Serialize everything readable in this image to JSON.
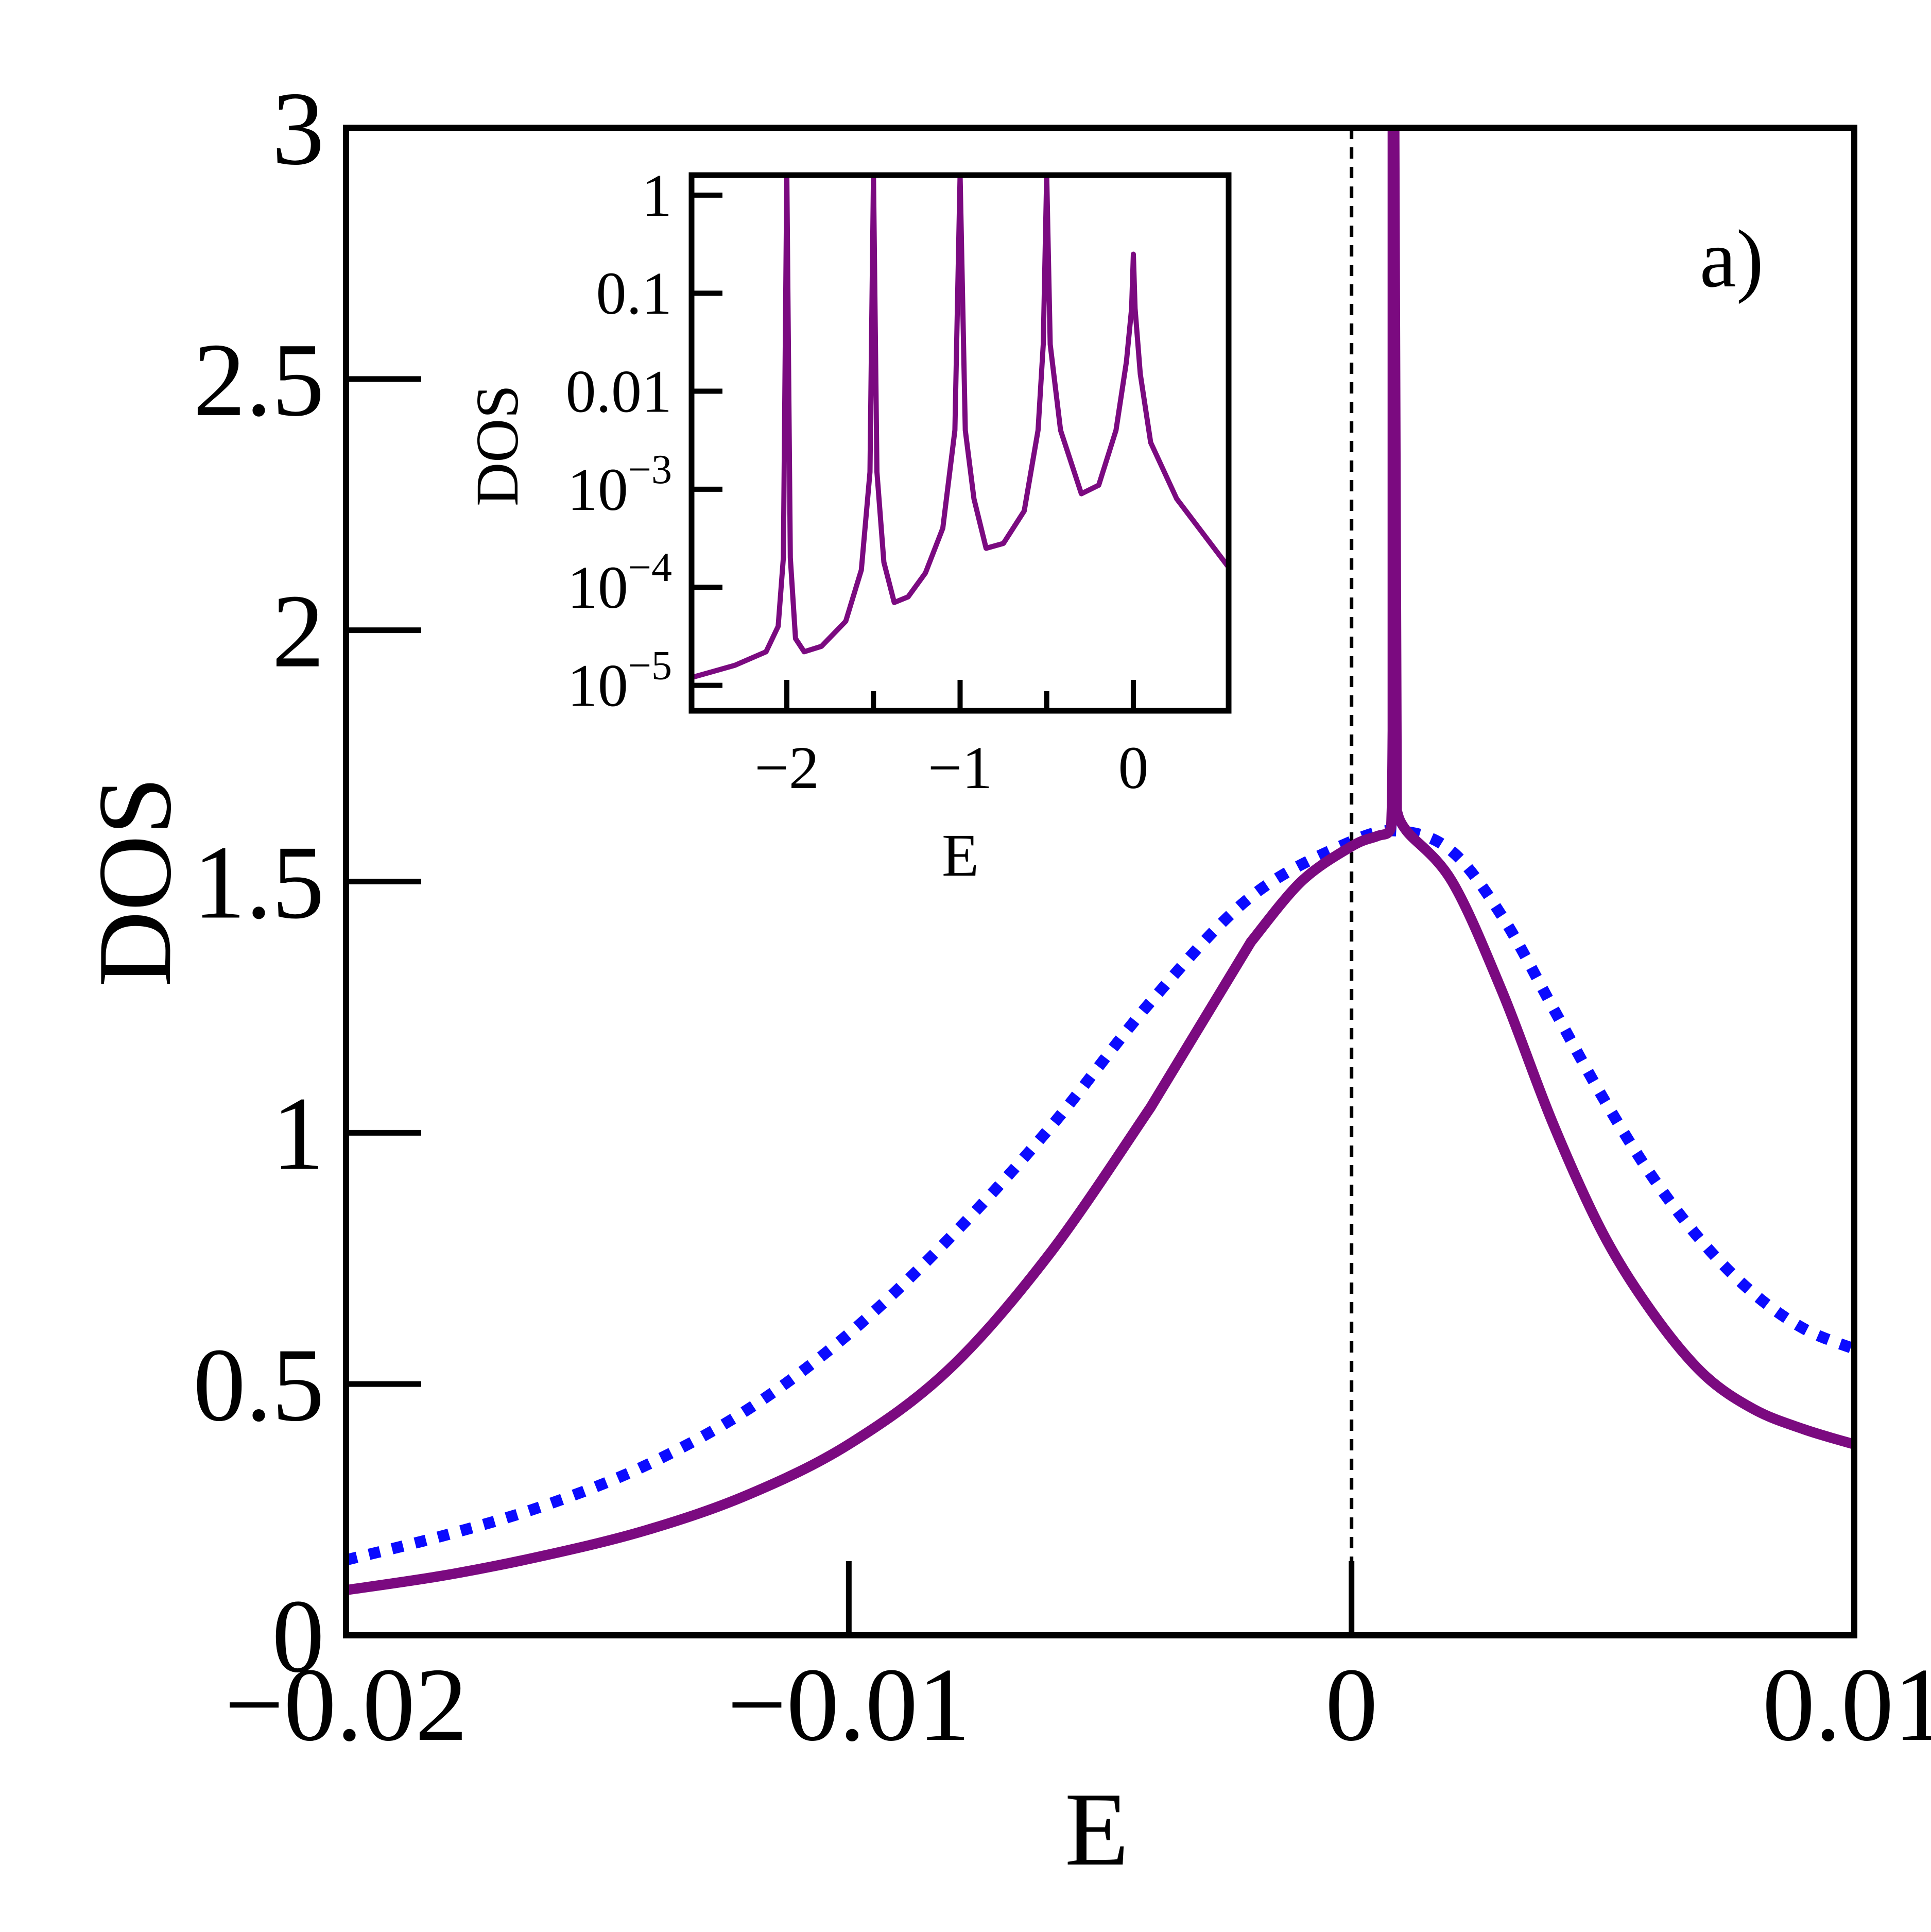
{
  "chart_data": [
    {
      "type": "line",
      "role": "main",
      "panel_label": "a)",
      "xlabel": "E",
      "ylabel": "DOS",
      "xlim": [
        -0.02,
        0.01
      ],
      "ylim": [
        0,
        3
      ],
      "x_ticks": [
        -0.02,
        -0.01,
        0,
        0.01
      ],
      "x_tick_labels": [
        "−0.02",
        "−0.01",
        "0",
        "0.01"
      ],
      "y_ticks": [
        0,
        0.5,
        1,
        1.5,
        2,
        2.5,
        3
      ],
      "y_tick_labels": [
        "0",
        "0.5",
        "1",
        "1.5",
        "2",
        "2.5",
        "3"
      ],
      "vertical_reference_line": {
        "x": 0,
        "style": "dashed",
        "color": "#000000"
      },
      "series": [
        {
          "name": "solid",
          "style": "solid",
          "color": "#7b0a80",
          "x": [
            -0.02,
            -0.018,
            -0.016,
            -0.014,
            -0.012,
            -0.01,
            -0.008,
            -0.006,
            -0.004,
            -0.002,
            -0.001,
            0,
            0.0005,
            0.00075,
            0.0008,
            0.00082,
            0.00082,
            0.00085,
            0.0009,
            0.0011,
            0.002,
            0.003,
            0.004,
            0.005,
            0.006,
            0.007,
            0.008,
            0.009,
            0.01
          ],
          "y": [
            0.09,
            0.12,
            0.16,
            0.21,
            0.28,
            0.38,
            0.53,
            0.76,
            1.05,
            1.38,
            1.5,
            1.57,
            1.59,
            1.6,
            1.64,
            1.8,
            3.0,
            3.0,
            1.64,
            1.6,
            1.5,
            1.28,
            1.02,
            0.8,
            0.64,
            0.52,
            0.45,
            0.41,
            0.38
          ]
        },
        {
          "name": "dotted",
          "style": "dotted",
          "color": "#0b0bff",
          "x": [
            -0.02,
            -0.018,
            -0.016,
            -0.014,
            -0.012,
            -0.01,
            -0.008,
            -0.006,
            -0.004,
            -0.002,
            0,
            0.001,
            0.002,
            0.003,
            0.004,
            0.005,
            0.006,
            0.007,
            0.008,
            0.009,
            0.01
          ],
          "y": [
            0.15,
            0.2,
            0.26,
            0.34,
            0.45,
            0.6,
            0.79,
            1.01,
            1.26,
            1.47,
            1.58,
            1.6,
            1.56,
            1.43,
            1.25,
            1.07,
            0.91,
            0.78,
            0.68,
            0.61,
            0.57
          ]
        }
      ]
    },
    {
      "type": "line",
      "role": "inset",
      "xlabel": "E",
      "ylabel": "DOS",
      "yscale": "log",
      "xlim": [
        -2.55,
        0.55
      ],
      "ylim": [
        5.5e-06,
        1.6
      ],
      "x_ticks": [
        -2,
        -1,
        0
      ],
      "x_tick_labels": [
        "−2",
        "−1",
        "0"
      ],
      "minor_x_ticks": [
        -2,
        -1.5,
        -1,
        -0.5,
        0
      ],
      "y_ticks": [
        1e-05,
        0.0001,
        0.001,
        0.01,
        0.1,
        1
      ],
      "y_tick_labels": [
        {
          "base": "10",
          "exp": "−5"
        },
        {
          "base": "10",
          "exp": "−4"
        },
        {
          "base": "10",
          "exp": "−3"
        },
        {
          "text": "0.01"
        },
        {
          "text": "0.1"
        },
        {
          "text": "1"
        }
      ],
      "series": [
        {
          "name": "solid",
          "style": "solid",
          "color": "#7b0a80",
          "peaks": [
            -2.0,
            -1.5,
            -1.0,
            -0.5,
            0.0
          ],
          "x": [
            -2.55,
            -2.3,
            -2.12,
            -2.05,
            -2.02,
            -2.0,
            -1.98,
            -1.95,
            -1.9,
            -1.8,
            -1.66,
            -1.57,
            -1.52,
            -1.5,
            -1.48,
            -1.44,
            -1.38,
            -1.3,
            -1.2,
            -1.1,
            -1.03,
            -1.0,
            -0.97,
            -0.92,
            -0.85,
            -0.75,
            -0.63,
            -0.55,
            -0.52,
            -0.5,
            -0.48,
            -0.42,
            -0.3,
            -0.2,
            -0.1,
            -0.04,
            -0.01,
            0.0,
            0.01,
            0.04,
            0.1,
            0.25,
            0.55
          ],
          "y": [
            1.2e-05,
            1.6e-05,
            2.2e-05,
            4e-05,
            0.0002,
            1.6,
            0.0002,
            3e-05,
            2.2e-05,
            2.5e-05,
            4.5e-05,
            0.00015,
            0.0015,
            1.6,
            0.0015,
            0.00018,
            7e-05,
            8e-05,
            0.00014,
            0.0004,
            0.004,
            1.6,
            0.004,
            0.0008,
            0.00025,
            0.00028,
            0.0006,
            0.004,
            0.03,
            1.6,
            0.03,
            0.004,
            0.0009,
            0.0011,
            0.004,
            0.02,
            0.07,
            0.25,
            0.07,
            0.015,
            0.003,
            0.0008,
            0.00016
          ]
        }
      ]
    }
  ]
}
